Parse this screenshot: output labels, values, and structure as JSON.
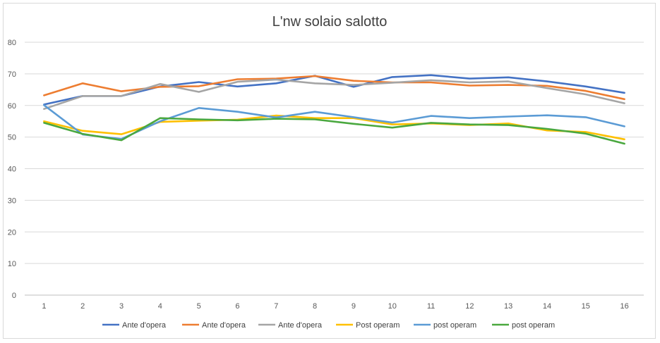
{
  "chart_data": {
    "type": "line",
    "title": "L'nw solaio salotto",
    "xlabel": "",
    "ylabel": "",
    "categories": [
      "1",
      "2",
      "3",
      "4",
      "5",
      "6",
      "7",
      "8",
      "9",
      "10",
      "11",
      "12",
      "13",
      "14",
      "15",
      "16"
    ],
    "ylim": [
      0,
      80
    ],
    "yticks": [
      0,
      10,
      20,
      30,
      40,
      50,
      60,
      70,
      80
    ],
    "grid": true,
    "legend": "bottom",
    "series": [
      {
        "name": "Ante d'opera",
        "color": "#4472c4",
        "values": [
          60.3,
          63.0,
          63.0,
          66.0,
          67.4,
          66.0,
          67.0,
          69.4,
          65.9,
          69.0,
          69.6,
          68.5,
          68.9,
          67.6,
          66.0,
          64.0
        ]
      },
      {
        "name": "Ante d'opera",
        "color": "#ed7d31",
        "values": [
          63.2,
          67.0,
          64.5,
          65.9,
          66.1,
          68.3,
          68.5,
          69.3,
          67.8,
          67.3,
          67.3,
          66.3,
          66.5,
          66.2,
          64.6,
          62.0
        ]
      },
      {
        "name": "Ante d'opera",
        "color": "#a5a5a5",
        "values": [
          58.9,
          63.0,
          63.0,
          66.8,
          64.3,
          67.5,
          68.2,
          67.0,
          66.5,
          67.2,
          68.0,
          67.3,
          67.6,
          65.5,
          63.5,
          60.7
        ]
      },
      {
        "name": "Post operam",
        "color": "#ffc000",
        "values": [
          55.0,
          52.0,
          50.9,
          54.8,
          55.2,
          55.5,
          56.8,
          56.0,
          56.0,
          54.0,
          54.3,
          53.8,
          54.3,
          52.1,
          51.6,
          49.3
        ]
      },
      {
        "name": "post operam",
        "color": "#5b9bd5",
        "values": [
          60.1,
          50.8,
          49.4,
          55.0,
          59.2,
          58.0,
          56.2,
          58.0,
          56.3,
          54.6,
          56.7,
          56.0,
          56.5,
          56.9,
          56.3,
          53.4
        ]
      },
      {
        "name": "post operam",
        "color": "#4aa83f",
        "values": [
          54.5,
          51.0,
          49.0,
          56.0,
          55.6,
          55.3,
          55.8,
          55.6,
          54.2,
          53.0,
          54.5,
          54.0,
          53.8,
          52.6,
          51.1,
          47.9
        ]
      }
    ]
  }
}
